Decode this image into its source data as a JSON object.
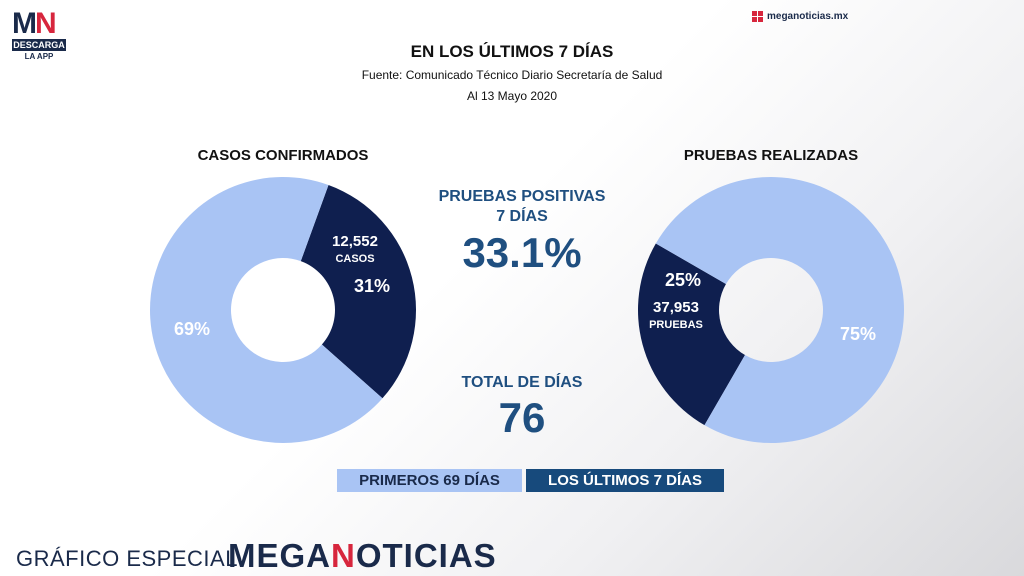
{
  "logo": {
    "letters_m": "M",
    "letters_n": "N",
    "band": "DESCARGA",
    "app": "LA APP"
  },
  "site": "meganoticias.mx",
  "header": {
    "title": "EN LOS ÚLTIMOS 7 DÍAS",
    "source": "Fuente: Comunicado Técnico Diario Secretaría de Salud",
    "date": "Al 13 Mayo 2020"
  },
  "center": {
    "positivas_label": "PRUEBAS POSITIVAS",
    "positivas_sub": "7 DÍAS",
    "positivas_value": "33.1%",
    "total_label": "TOTAL DE DÍAS",
    "total_value": "76"
  },
  "legend": {
    "first": "PRIMEROS 69 DÍAS",
    "last": "LOS ÚLTIMOS 7 DÍAS"
  },
  "footer": {
    "label": "GRÁFICO ESPECIAL",
    "brand_pre": "MEGA",
    "brand_n": "N",
    "brand_post": "OTICIAS"
  },
  "colors": {
    "first": "#a9c4f4",
    "last": "#0f1f4f",
    "accent": "#1f4f80",
    "brand_red": "#d7263d"
  },
  "chart_data": [
    {
      "type": "pie",
      "title": "CASOS CONFIRMADOS",
      "slices": [
        {
          "name": "PRIMEROS 69 DÍAS",
          "value": 69,
          "label": "69%"
        },
        {
          "name": "LOS ÚLTIMOS 7 DÍAS",
          "value": 31,
          "label": "31%",
          "count": "12,552",
          "count_unit": "CASOS"
        }
      ]
    },
    {
      "type": "pie",
      "title": "PRUEBAS REALIZADAS",
      "slices": [
        {
          "name": "PRIMEROS 69 DÍAS",
          "value": 75,
          "label": "75%"
        },
        {
          "name": "LOS ÚLTIMOS 7 DÍAS",
          "value": 25,
          "label": "25%",
          "count": "37,953",
          "count_unit": "PRUEBAS"
        }
      ]
    }
  ]
}
